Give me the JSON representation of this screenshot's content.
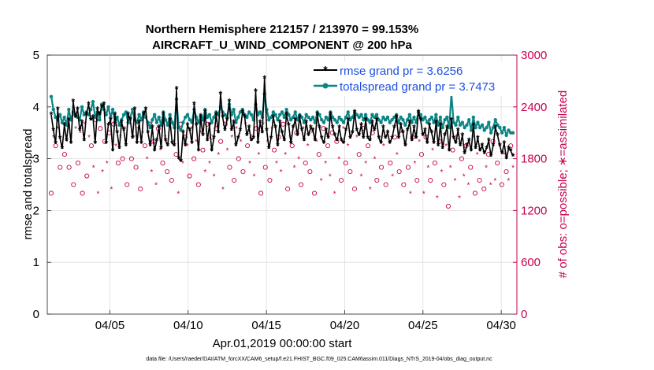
{
  "chart_data": {
    "type": "line",
    "title": "Northern Hemisphere 212157 / 213970 = 99.153%",
    "subtitle": "AIRCRAFT_U_WIND_COMPONENT @ 200 hPa",
    "xlabel": "Apr.01,2019 00:00:00 start",
    "ylabel": "rmse and totalspread",
    "y2label": "# of obs: o=possible; ∗=assimilated",
    "x_ticks": [
      "04/05",
      "04/10",
      "04/15",
      "04/20",
      "04/25",
      "04/30"
    ],
    "x_tick_days": [
      5,
      10,
      15,
      20,
      25,
      30
    ],
    "xlim": [
      1,
      31
    ],
    "ylim": [
      0,
      5
    ],
    "y_ticks": [
      "0",
      "1",
      "2",
      "3",
      "4",
      "5"
    ],
    "y2lim": [
      0,
      3000
    ],
    "y2_ticks": [
      "0",
      "600",
      "1200",
      "1800",
      "2400",
      "3000"
    ],
    "grid": true,
    "legend_position": "top-right",
    "footer": "data file: /Users/raeder/DAI/ATM_forcXX/CAM6_setup/f.e21.FHIST_BGC.f09_025.CAM6assim.011/Diags_NTrS_2019-04/obs_diag_output.nc",
    "series": [
      {
        "name": "rmse grand pr = 3.6256",
        "color": "#000000",
        "marker": "asterisk",
        "values": [
          3.85,
          3.55,
          3.3,
          3.95,
          3.4,
          3.2,
          3.65,
          3.35,
          3.75,
          3.3,
          4.1,
          3.8,
          3.95,
          3.55,
          3.7,
          3.35,
          3.85,
          4.05,
          3.75,
          3.8,
          3.3,
          3.95,
          3.85,
          4.0,
          4.05,
          3.3,
          3.65,
          3.75,
          3.15,
          3.85,
          3.5,
          3.2,
          3.7,
          3.55,
          3.25,
          3.85,
          3.75,
          3.4,
          3.95,
          3.3,
          3.7,
          3.3,
          3.85,
          3.95,
          3.5,
          3.25,
          3.6,
          3.15,
          3.35,
          3.6,
          3.2,
          3.85,
          3.35,
          3.25,
          3.75,
          3.3,
          3.25,
          4.35,
          3.0,
          2.95,
          3.5,
          3.25,
          3.65,
          3.55,
          3.3,
          4.05,
          3.65,
          3.15,
          3.8,
          3.45,
          3.9,
          3.35,
          3.65,
          3.15,
          3.4,
          3.85,
          3.5,
          4.25,
          3.8,
          3.55,
          3.75,
          4.1,
          3.55,
          3.7,
          3.25,
          3.4,
          3.55,
          3.9,
          3.8,
          3.45,
          3.6,
          3.35,
          3.4,
          4.3,
          3.3,
          3.7,
          3.5,
          4.55,
          3.55,
          3.2,
          3.4,
          3.8,
          3.6,
          3.25,
          3.7,
          3.5,
          3.35,
          3.85,
          3.65,
          3.3,
          3.6,
          3.75,
          3.45,
          3.8,
          3.55,
          3.35,
          3.7,
          3.45,
          3.6,
          3.55,
          3.35,
          3.85,
          3.6,
          3.4,
          3.3,
          3.55,
          3.4,
          3.85,
          3.6,
          3.45,
          3.35,
          3.6,
          3.35,
          3.3,
          3.55,
          3.75,
          3.4,
          3.5,
          3.9,
          3.55,
          3.45,
          3.65,
          3.4,
          3.75,
          3.4,
          3.35,
          3.7,
          3.55,
          3.75,
          3.4,
          3.3,
          3.6,
          3.4,
          3.5,
          3.3,
          3.4,
          3.6,
          3.8,
          3.4,
          3.65,
          3.5,
          3.25,
          3.55,
          3.7,
          3.35,
          3.6,
          3.4,
          3.9,
          3.75,
          3.45,
          3.55,
          3.3,
          3.65,
          3.5,
          3.3,
          3.7,
          3.25,
          3.65,
          3.2,
          3.45,
          3.6,
          3.15,
          3.75,
          3.4,
          3.3,
          3.55,
          3.25,
          3.45,
          3.1,
          3.25,
          3.35,
          3.15,
          3.65,
          3.2,
          3.4,
          3.15,
          3.25,
          3.1,
          3.2,
          3.35,
          3.05,
          3.25,
          3.6,
          3.45,
          3.25,
          3.1,
          3.3,
          3.0,
          3.2,
          3.15,
          3.05
        ]
      },
      {
        "name": "totalspread grand pr = 3.7473",
        "color": "#0b8585",
        "marker": "circle",
        "values": [
          4.2,
          3.95,
          3.8,
          3.75,
          3.85,
          3.7,
          3.8,
          3.65,
          3.95,
          3.75,
          3.9,
          3.85,
          3.8,
          3.75,
          4.0,
          3.85,
          3.9,
          3.85,
          3.95,
          4.1,
          3.8,
          3.9,
          3.75,
          4.05,
          3.95,
          3.85,
          4.0,
          3.8,
          3.95,
          3.7,
          3.8,
          3.65,
          3.75,
          3.85,
          3.9,
          3.7,
          3.8,
          3.95,
          3.75,
          3.7,
          3.85,
          3.75,
          3.9,
          3.8,
          3.7,
          3.6,
          3.75,
          3.85,
          3.7,
          3.8,
          3.65,
          3.9,
          3.75,
          3.65,
          3.85,
          3.7,
          3.6,
          4.15,
          3.6,
          3.55,
          3.7,
          3.8,
          3.85,
          3.75,
          3.7,
          3.95,
          3.8,
          3.7,
          3.85,
          3.75,
          3.95,
          3.8,
          3.85,
          3.7,
          3.8,
          3.9,
          3.85,
          4.0,
          3.9,
          3.85,
          3.8,
          4.05,
          3.85,
          3.95,
          3.7,
          3.8,
          3.9,
          3.95,
          3.85,
          3.8,
          3.9,
          3.85,
          3.75,
          4.05,
          3.85,
          3.9,
          3.8,
          4.25,
          3.95,
          3.75,
          3.8,
          3.9,
          3.85,
          3.75,
          3.85,
          3.9,
          3.8,
          3.95,
          3.85,
          3.75,
          3.8,
          3.9,
          3.75,
          3.85,
          3.8,
          3.7,
          3.85,
          3.8,
          3.75,
          3.8,
          3.7,
          3.9,
          3.85,
          3.75,
          3.7,
          3.8,
          3.75,
          3.9,
          3.8,
          3.75,
          3.7,
          3.8,
          3.75,
          3.7,
          3.8,
          3.9,
          3.75,
          3.8,
          3.9,
          3.85,
          3.8,
          3.85,
          3.75,
          3.85,
          3.75,
          3.7,
          3.85,
          3.8,
          3.85,
          3.75,
          3.7,
          3.8,
          3.75,
          3.8,
          3.7,
          3.75,
          3.8,
          3.85,
          3.7,
          3.8,
          3.75,
          3.65,
          3.75,
          3.85,
          3.7,
          3.8,
          3.7,
          3.9,
          3.85,
          3.75,
          3.8,
          3.7,
          3.75,
          3.8,
          3.7,
          3.85,
          3.65,
          3.8,
          3.6,
          3.75,
          3.8,
          3.6,
          4.25,
          3.7,
          3.65,
          3.8,
          3.65,
          3.7,
          3.6,
          3.65,
          3.75,
          3.55,
          3.8,
          3.6,
          3.7,
          3.6,
          3.65,
          3.55,
          3.6,
          3.7,
          3.5,
          3.6,
          3.75,
          3.65,
          3.6,
          3.5,
          3.6,
          3.45,
          3.55,
          3.5,
          3.5
        ]
      },
      {
        "name": "obs possible",
        "axis": "right",
        "color": "#c8004f",
        "marker": "open-circle",
        "values": [
          1400,
          2050,
          1950,
          2150,
          1700,
          2200,
          1850,
          2000,
          1700,
          2250,
          1500,
          2150,
          1750,
          2100,
          1400,
          2200,
          1600,
          2050,
          1950,
          1700,
          2250,
          1400,
          2150,
          1650,
          2000,
          1750,
          2100,
          1450,
          2200,
          1950,
          1750,
          2050,
          1800,
          2150,
          1500,
          2200,
          1800,
          2050,
          1700,
          2150,
          1450,
          2100,
          1950,
          1800,
          2200,
          1650,
          2000,
          1500,
          2150,
          1900,
          1750,
          2050,
          1650,
          2200,
          1550,
          2000,
          1850,
          1400,
          2200,
          1750,
          2050,
          1950,
          1600,
          2150,
          1800,
          2000,
          1500,
          2100,
          1900,
          1650,
          2200,
          1750,
          2050,
          1600,
          2150,
          1850,
          2000,
          1450,
          2200,
          1900,
          1700,
          2050,
          1550,
          2150,
          1800,
          2000,
          1650,
          2200,
          1950,
          1750,
          2050,
          1600,
          2150,
          1850,
          1400,
          2200,
          1700,
          2000,
          1550,
          2150,
          1900,
          1750,
          2050,
          1650,
          2200,
          1850,
          1450,
          2050,
          1950,
          1700,
          2100,
          1800,
          1500,
          2150,
          1750,
          1950,
          1650,
          2100,
          1400,
          2000,
          1850,
          1550,
          2150,
          1750,
          1950,
          1600,
          2100,
          1400,
          2000,
          1800,
          1550,
          2150,
          1750,
          1950,
          1650,
          2100,
          1450,
          2050,
          1850,
          1600,
          2150,
          1750,
          1950,
          1450,
          2100,
          1800,
          1550,
          2050,
          1700,
          1950,
          1500,
          2100,
          1750,
          1600,
          2050,
          1850,
          1650,
          2100,
          1500,
          1950,
          1700,
          1400,
          2050,
          1750,
          1550,
          2000,
          1850,
          1400,
          2050,
          1700,
          1550,
          1900,
          1750,
          1350,
          2000,
          1650,
          1500,
          1950,
          1250,
          1700,
          1900,
          1550,
          2050,
          1350,
          1800,
          1600,
          1950,
          1500,
          1700,
          2050,
          1400,
          1850,
          1550,
          1950,
          1450,
          1700,
          1850,
          1500,
          2000,
          1550,
          1750,
          1950,
          1500,
          1850,
          1650,
          1550,
          1950,
          1700
        ]
      }
    ]
  }
}
